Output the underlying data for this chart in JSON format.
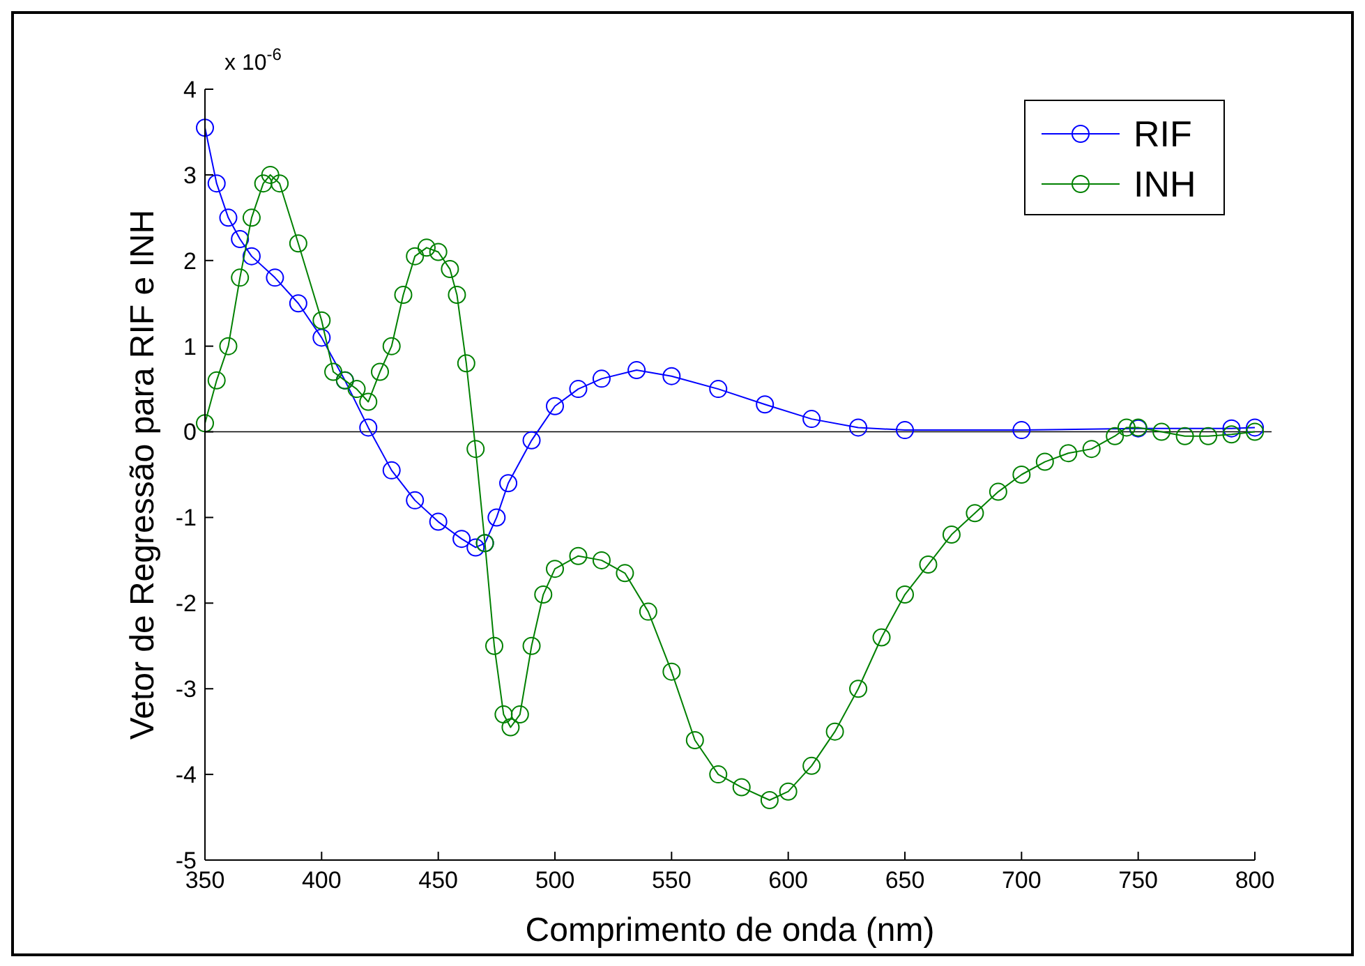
{
  "chart_data": {
    "type": "line",
    "xlabel": "Comprimento de onda (nm)",
    "ylabel": "Vetor de Regressão para RIF e INH",
    "annotations": [
      "x 10$^{-6}$"
    ],
    "xlim": [
      350,
      800
    ],
    "xticks": [
      350,
      400,
      450,
      500,
      550,
      600,
      650,
      700,
      750,
      800
    ],
    "ylim": [
      -5,
      4
    ],
    "yticks": [
      -5,
      -4,
      -3,
      -2,
      -1,
      0,
      1,
      2,
      3,
      4
    ],
    "ref_lines": [
      {
        "axis": "y",
        "value": 0,
        "color": "#000000"
      }
    ],
    "grid": false,
    "legend": "top right",
    "marker": "circle",
    "line_style": "solid",
    "series": [
      {
        "name": "RIF",
        "color": "#0000ff",
        "x": [
          350,
          355,
          360,
          365,
          370,
          380,
          390,
          400,
          410,
          420,
          430,
          440,
          450,
          460,
          466,
          470,
          475,
          480,
          490,
          500,
          510,
          520,
          535,
          550,
          570,
          590,
          610,
          630,
          650,
          700,
          750,
          790,
          800
        ],
        "values": [
          3.55,
          2.9,
          2.5,
          2.25,
          2.05,
          1.8,
          1.5,
          1.1,
          0.6,
          0.05,
          -0.45,
          -0.8,
          -1.05,
          -1.25,
          -1.35,
          -1.3,
          -1.0,
          -0.6,
          -0.1,
          0.3,
          0.5,
          0.62,
          0.72,
          0.65,
          0.5,
          0.32,
          0.15,
          0.05,
          0.02,
          0.02,
          0.04,
          0.04,
          0.05
        ]
      },
      {
        "name": "INH",
        "color": "#008000",
        "x": [
          350,
          355,
          360,
          365,
          370,
          375,
          378,
          382,
          390,
          400,
          405,
          410,
          415,
          420,
          425,
          430,
          435,
          440,
          445,
          450,
          455,
          458,
          462,
          466,
          470,
          474,
          478,
          481,
          485,
          490,
          495,
          500,
          510,
          520,
          530,
          540,
          550,
          560,
          570,
          580,
          592,
          600,
          610,
          620,
          630,
          640,
          650,
          660,
          670,
          680,
          690,
          700,
          710,
          720,
          730,
          740,
          745,
          750,
          760,
          770,
          780,
          790,
          800
        ],
        "values": [
          0.1,
          0.6,
          1.0,
          1.8,
          2.5,
          2.9,
          3.0,
          2.9,
          2.2,
          1.3,
          0.7,
          0.6,
          0.5,
          0.35,
          0.7,
          1.0,
          1.6,
          2.05,
          2.15,
          2.1,
          1.9,
          1.6,
          0.8,
          -0.2,
          -1.3,
          -2.5,
          -3.3,
          -3.45,
          -3.3,
          -2.5,
          -1.9,
          -1.6,
          -1.45,
          -1.5,
          -1.65,
          -2.1,
          -2.8,
          -3.6,
          -4.0,
          -4.15,
          -4.3,
          -4.2,
          -3.9,
          -3.5,
          -3.0,
          -2.4,
          -1.9,
          -1.55,
          -1.2,
          -0.95,
          -0.7,
          -0.5,
          -0.35,
          -0.25,
          -0.2,
          -0.05,
          0.05,
          0.05,
          0.0,
          -0.05,
          -0.05,
          -0.03,
          0.0
        ]
      }
    ]
  }
}
